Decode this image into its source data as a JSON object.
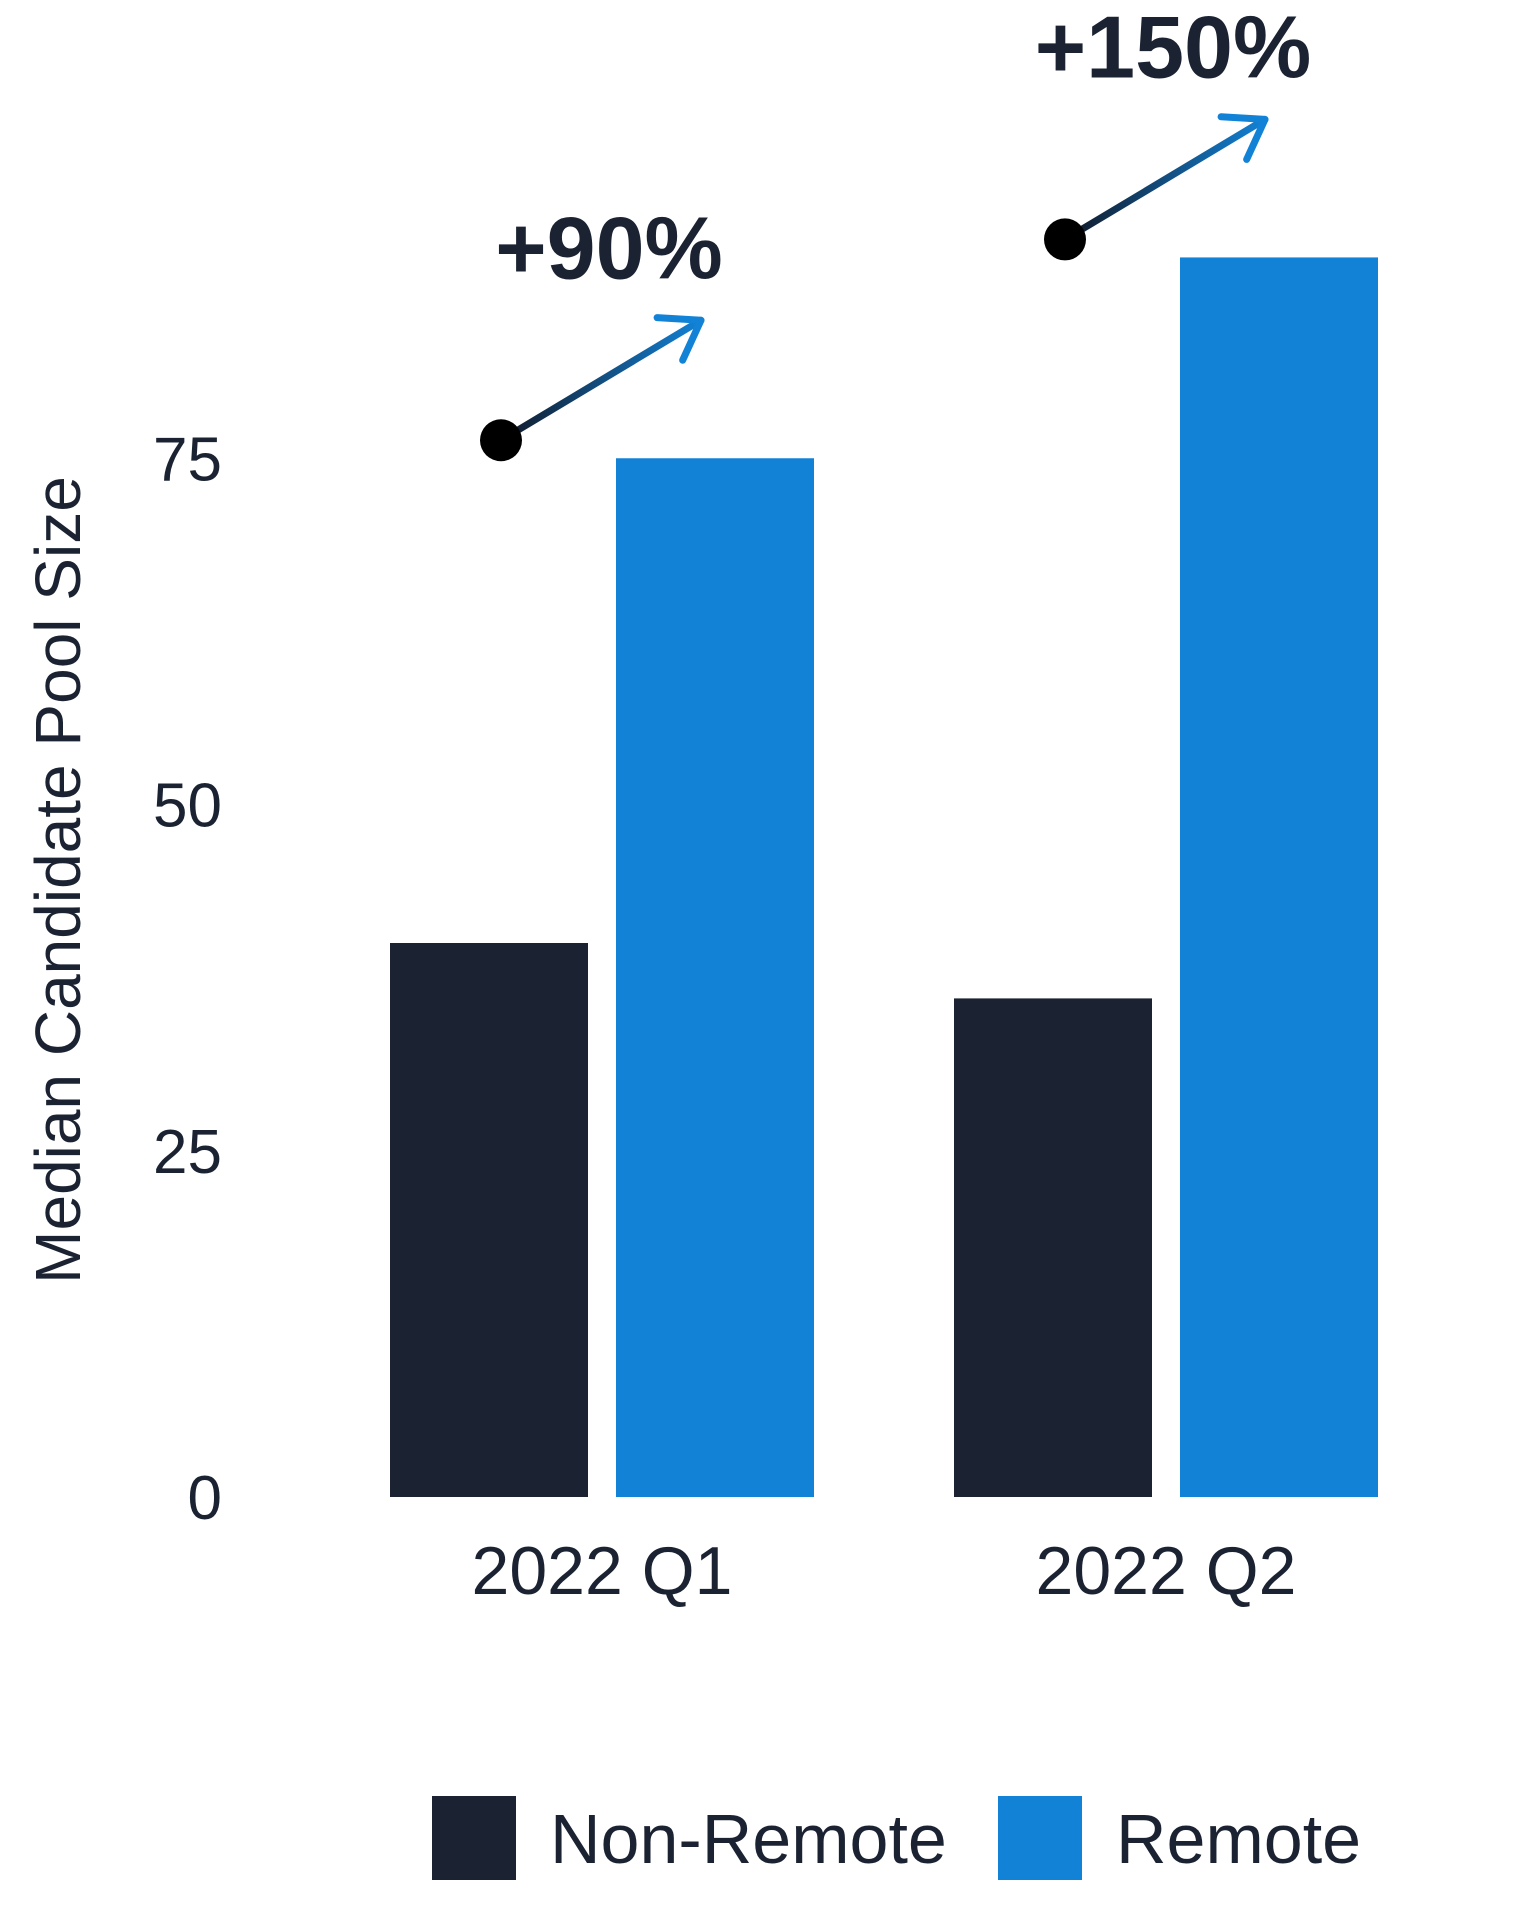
{
  "chart_data": {
    "type": "bar",
    "title": "",
    "xlabel": "",
    "ylabel": "Median Candidate Pool Size",
    "categories": [
      "2022 Q1",
      "2022 Q2"
    ],
    "series": [
      {
        "name": "Non-Remote",
        "color": "#1b2333",
        "values": [
          40,
          36
        ]
      },
      {
        "name": "Remote",
        "color": "#1282d6",
        "values": [
          75,
          89.5
        ]
      }
    ],
    "ylim": [
      0,
      100
    ],
    "yticks": [
      "0",
      "25",
      "50",
      "75"
    ],
    "ytick_values": [
      0,
      25,
      50,
      75
    ],
    "grid": false,
    "legend_position": "bottom-center",
    "annotations": [
      {
        "category": "2022 Q1",
        "text": "+90%"
      },
      {
        "category": "2022 Q2",
        "text": "+150%"
      }
    ],
    "annotation_colors": {
      "dot": "#000000",
      "arrow_start": "#111827",
      "arrow_end": "#1282d6"
    }
  }
}
